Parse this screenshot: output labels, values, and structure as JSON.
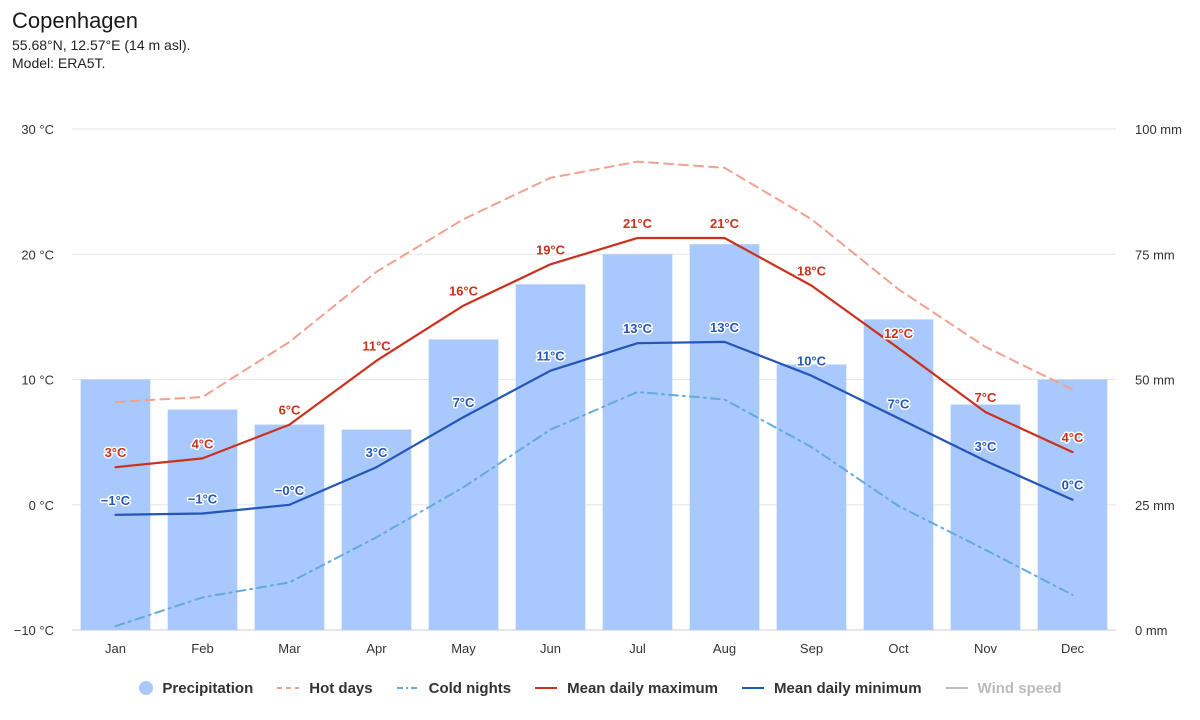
{
  "header": {
    "title": "Copenhagen",
    "location": "55.68°N, 12.57°E (14 m asl).",
    "model": "Model: ERA5T."
  },
  "colors": {
    "precipitation": "#a9c8fb",
    "hot_days": "#f2a091",
    "cold_nights": "#66a9dc",
    "mean_max": "#c9321f",
    "mean_min": "#2456b8",
    "wind_speed": "#aaaaaa",
    "grid": "#e6e6e6",
    "axis": "#cccccc"
  },
  "legend": [
    {
      "key": "precipitation",
      "label": "Precipitation",
      "symbol": "circle",
      "icon": "precipitation-circle-icon",
      "active": true
    },
    {
      "key": "hot_days",
      "label": "Hot days",
      "symbol": "dash",
      "icon": "dashed-line-icon",
      "active": true
    },
    {
      "key": "cold_nights",
      "label": "Cold nights",
      "symbol": "dashdot",
      "icon": "dash-dot-line-icon",
      "active": true
    },
    {
      "key": "mean_max",
      "label": "Mean daily maximum",
      "symbol": "line",
      "icon": "solid-line-icon",
      "active": true
    },
    {
      "key": "mean_min",
      "label": "Mean daily minimum",
      "symbol": "line",
      "icon": "solid-line-icon",
      "active": true
    },
    {
      "key": "wind_speed",
      "label": "Wind speed",
      "symbol": "line",
      "icon": "solid-line-icon",
      "active": false
    }
  ],
  "chart_data": {
    "type": "bar+line",
    "categories": [
      "Jan",
      "Feb",
      "Mar",
      "Apr",
      "May",
      "Jun",
      "Jul",
      "Aug",
      "Sep",
      "Oct",
      "Nov",
      "Dec"
    ],
    "y_left": {
      "min": -10,
      "max": 30,
      "ticks": [
        -10,
        0,
        10,
        20,
        30
      ],
      "tick_labels": [
        "−10 °C",
        "0 °C",
        "10 °C",
        "20 °C",
        "30 °C"
      ]
    },
    "y_right": {
      "min": 0,
      "max": 100,
      "ticks": [
        0,
        25,
        50,
        75,
        100
      ],
      "tick_labels": [
        "0 mm",
        "25 mm",
        "50 mm",
        "75 mm",
        "100 mm"
      ]
    },
    "grid": true,
    "legend_position": "bottom",
    "series": [
      {
        "key": "precipitation",
        "name": "Precipitation",
        "type": "bar",
        "axis": "right",
        "unit": "mm",
        "values": [
          50,
          44,
          41,
          40,
          58,
          69,
          75,
          77,
          53,
          62,
          45,
          50
        ]
      },
      {
        "key": "hot_days",
        "name": "Hot days",
        "type": "line",
        "dash": "dash",
        "axis": "left",
        "unit": "°C",
        "values": [
          8.2,
          8.6,
          13,
          18.6,
          22.8,
          26.1,
          27.4,
          26.9,
          22.8,
          17.2,
          12.6,
          9.2
        ]
      },
      {
        "key": "cold_nights",
        "name": "Cold nights",
        "type": "line",
        "dash": "dashdot",
        "axis": "left",
        "unit": "°C",
        "values": [
          -9.7,
          -7.4,
          -6.2,
          -2.6,
          1.4,
          6.0,
          9.0,
          8.4,
          4.6,
          -0.1,
          -3.6,
          -7.2
        ]
      },
      {
        "key": "mean_max",
        "name": "Mean daily maximum",
        "type": "line",
        "axis": "left",
        "unit": "°C",
        "values": [
          3.0,
          3.7,
          6.4,
          11.5,
          15.9,
          19.2,
          21.3,
          21.3,
          17.5,
          12.5,
          7.4,
          4.2
        ],
        "labels": [
          "3°C",
          "4°C",
          "6°C",
          "11°C",
          "16°C",
          "19°C",
          "21°C",
          "21°C",
          "18°C",
          "12°C",
          "7°C",
          "4°C"
        ]
      },
      {
        "key": "mean_min",
        "name": "Mean daily minimum",
        "type": "line",
        "axis": "left",
        "unit": "°C",
        "values": [
          -0.8,
          -0.7,
          0.0,
          3.0,
          7.0,
          10.7,
          12.9,
          13.0,
          10.3,
          6.9,
          3.5,
          0.4
        ],
        "labels": [
          "−1°C",
          "−1°C",
          "−0°C",
          "3°C",
          "7°C",
          "11°C",
          "13°C",
          "13°C",
          "10°C",
          "7°C",
          "3°C",
          "0°C"
        ]
      }
    ]
  }
}
